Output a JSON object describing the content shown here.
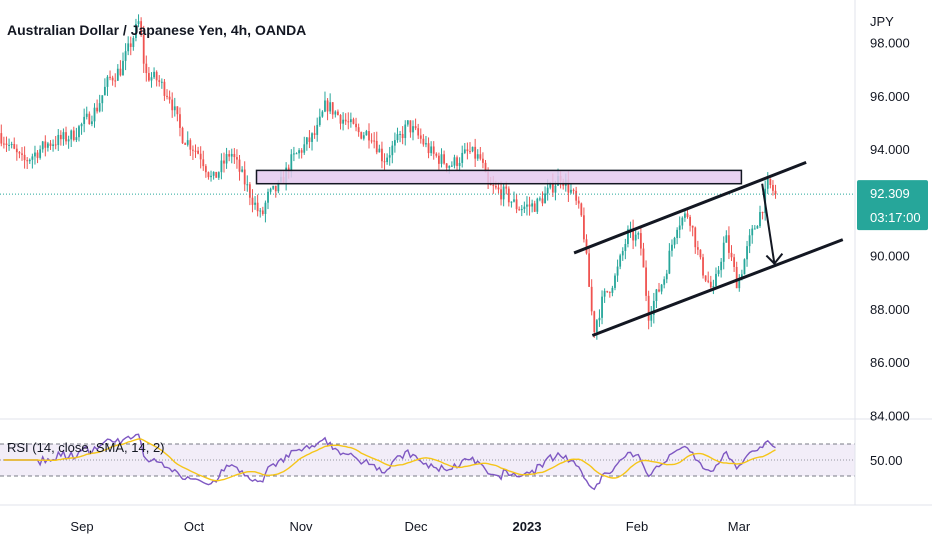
{
  "chart_data": {
    "type": "candlestick",
    "title": "Australian Dollar / Japanese Yen, 4h, OANDA",
    "currency": "JPY",
    "price_axis": {
      "ticks": [
        "98.000",
        "96.000",
        "94.000",
        "90.000",
        "88.000",
        "86.000",
        "84.000"
      ],
      "tick_values": [
        98,
        96,
        94,
        90,
        88,
        86,
        84
      ],
      "range": [
        83.9,
        99.6
      ]
    },
    "last_price": {
      "value_label": "92.309",
      "value": 92.309,
      "countdown": "03:17:00",
      "color": "#26a69a"
    },
    "time_axis": {
      "labels": [
        "Sep",
        "Oct",
        "Nov",
        "Dec",
        "2023",
        "Feb",
        "Mar"
      ],
      "bold": [
        false,
        false,
        false,
        false,
        true,
        false,
        false
      ]
    },
    "price_path": [
      [
        0,
        94.6
      ],
      [
        2,
        93.5
      ],
      [
        4,
        94.2
      ],
      [
        6,
        94.5
      ],
      [
        8,
        95.5
      ],
      [
        9,
        96.6
      ],
      [
        10,
        97.0
      ],
      [
        11,
        98.2
      ],
      [
        11.5,
        98.8
      ],
      [
        12,
        96.8
      ],
      [
        13,
        96.6
      ],
      [
        14,
        96.0
      ],
      [
        15,
        94.5
      ],
      [
        16.5,
        93.8
      ],
      [
        17.5,
        92.8
      ],
      [
        19,
        93.9
      ],
      [
        20.5,
        92.4
      ],
      [
        21.5,
        91.4
      ],
      [
        22,
        92.2
      ],
      [
        23,
        92.6
      ],
      [
        24,
        93.6
      ],
      [
        25,
        94.1
      ],
      [
        26,
        94.6
      ],
      [
        26.8,
        95.7
      ],
      [
        27.5,
        95.4
      ],
      [
        28.5,
        95.0
      ],
      [
        29.5,
        94.6
      ],
      [
        30.5,
        94.6
      ],
      [
        31.5,
        93.6
      ],
      [
        32.5,
        94.2
      ],
      [
        33.5,
        94.9
      ],
      [
        34.5,
        94.4
      ],
      [
        35.5,
        93.8
      ],
      [
        37,
        93.4
      ],
      [
        38.5,
        93.9
      ],
      [
        39.5,
        93.6
      ],
      [
        40,
        92.6
      ],
      [
        41.5,
        92.3
      ],
      [
        42.5,
        91.8
      ],
      [
        44,
        91.9
      ],
      [
        45,
        92.4
      ],
      [
        46,
        93.0
      ],
      [
        47,
        92.3
      ],
      [
        47.8,
        91.3
      ],
      [
        48.3,
        89.0
      ],
      [
        48.7,
        87.2
      ],
      [
        49.5,
        88.4
      ],
      [
        50.5,
        89.2
      ],
      [
        51.5,
        90.8
      ],
      [
        52.5,
        90.6
      ],
      [
        53.2,
        87.8
      ],
      [
        54.5,
        89.2
      ],
      [
        55.5,
        91.2
      ],
      [
        56.5,
        91.6
      ],
      [
        57.5,
        89.6
      ],
      [
        58.5,
        88.6
      ],
      [
        59.5,
        90.7
      ],
      [
        60.5,
        88.9
      ],
      [
        61.5,
        90.6
      ],
      [
        62.5,
        91.8
      ],
      [
        63,
        92.7
      ],
      [
        63.6,
        92.31
      ]
    ],
    "resistance_zone": {
      "top": 93.2,
      "bottom": 92.7
    },
    "channel_upper": [
      [
        47,
        90.1
      ],
      [
        66,
        93.5
      ]
    ],
    "channel_lower": [
      [
        48.5,
        87.0
      ],
      [
        69,
        90.6
      ]
    ],
    "projection_arrow": [
      [
        62.4,
        92.7
      ],
      [
        63.4,
        89.7
      ]
    ],
    "rsi": {
      "label": "RSI (14, close, SMA, 14, 2)",
      "tick": "50.00",
      "tick_value": 50,
      "band_upper": 70,
      "band_lower": 30,
      "rsi_color": "#7e57c2",
      "ma_color": "#f5c518"
    }
  }
}
